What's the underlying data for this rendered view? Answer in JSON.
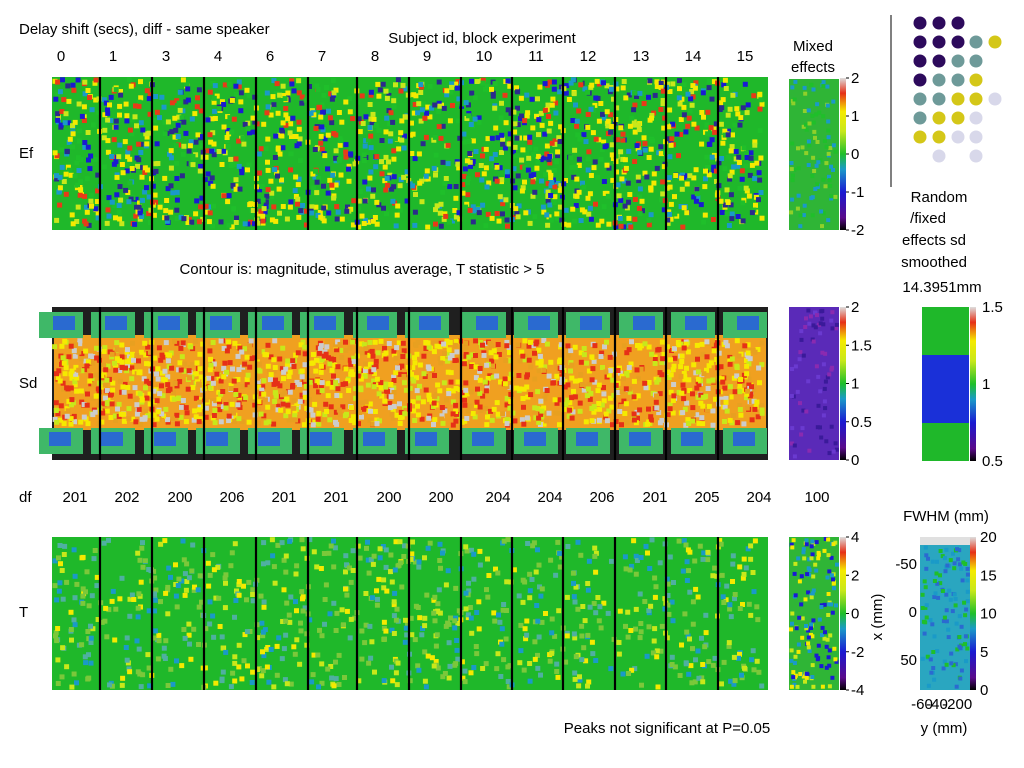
{
  "chart_data": {
    "type": "heatmap",
    "title": "Delay shift (secs), diff - same speaker",
    "subject_header": "Subject id, block experiment",
    "subjects": [
      "0",
      "1",
      "3",
      "4",
      "6",
      "7",
      "8",
      "9",
      "10",
      "11",
      "12",
      "13",
      "14",
      "15"
    ],
    "mixed_label": [
      "Mixed",
      "effects"
    ],
    "rows": [
      {
        "label": "Ef",
        "colorbar": {
          "ticks": [
            "2",
            "1",
            "0",
            "-1",
            "-2"
          ],
          "range": [
            -2,
            2
          ]
        }
      },
      {
        "label": "Sd",
        "colorbar": {
          "ticks": [
            "2",
            "1.5",
            "1",
            "0.5",
            "0"
          ],
          "range": [
            0,
            2
          ]
        }
      },
      {
        "label": "T",
        "colorbar": {
          "ticks": [
            "4",
            "2",
            "0",
            "-2",
            "-4"
          ],
          "range": [
            -4,
            4
          ]
        }
      }
    ],
    "contour_note": "Contour is: magnitude, stimulus average, T statistic > 5",
    "df_label": "df",
    "df_values": [
      "201",
      "202",
      "200",
      "206",
      "201",
      "201",
      "200",
      "200",
      "204",
      "204",
      "206",
      "201",
      "205",
      "204"
    ],
    "df_mixed": "100",
    "random_fixed_label": [
      "Random",
      "/fixed",
      "effects sd",
      "smoothed"
    ],
    "smoothing": "14.3951mm",
    "ratio_colorbar": {
      "ticks": [
        "1.5",
        "1",
        "0.5"
      ],
      "range": [
        0.5,
        1.5
      ]
    },
    "fwhm": {
      "title": "FWHM (mm)",
      "colorbar": {
        "ticks": [
          "20",
          "15",
          "10",
          "5",
          "0"
        ],
        "range": [
          0,
          20
        ]
      },
      "yticks": [
        "-50",
        "0",
        "50"
      ],
      "xticks": [
        "-60",
        "-40",
        "-20",
        "0"
      ],
      "ylabel": "x (mm)",
      "xlabel": "y (mm)"
    },
    "footer": "Peaks not significant at P=0.05",
    "palette": {
      "dark": "#2d0a5c",
      "teal": "#6e9a99",
      "yellow": "#d4c718",
      "light": "#d8d8ea"
    }
  }
}
